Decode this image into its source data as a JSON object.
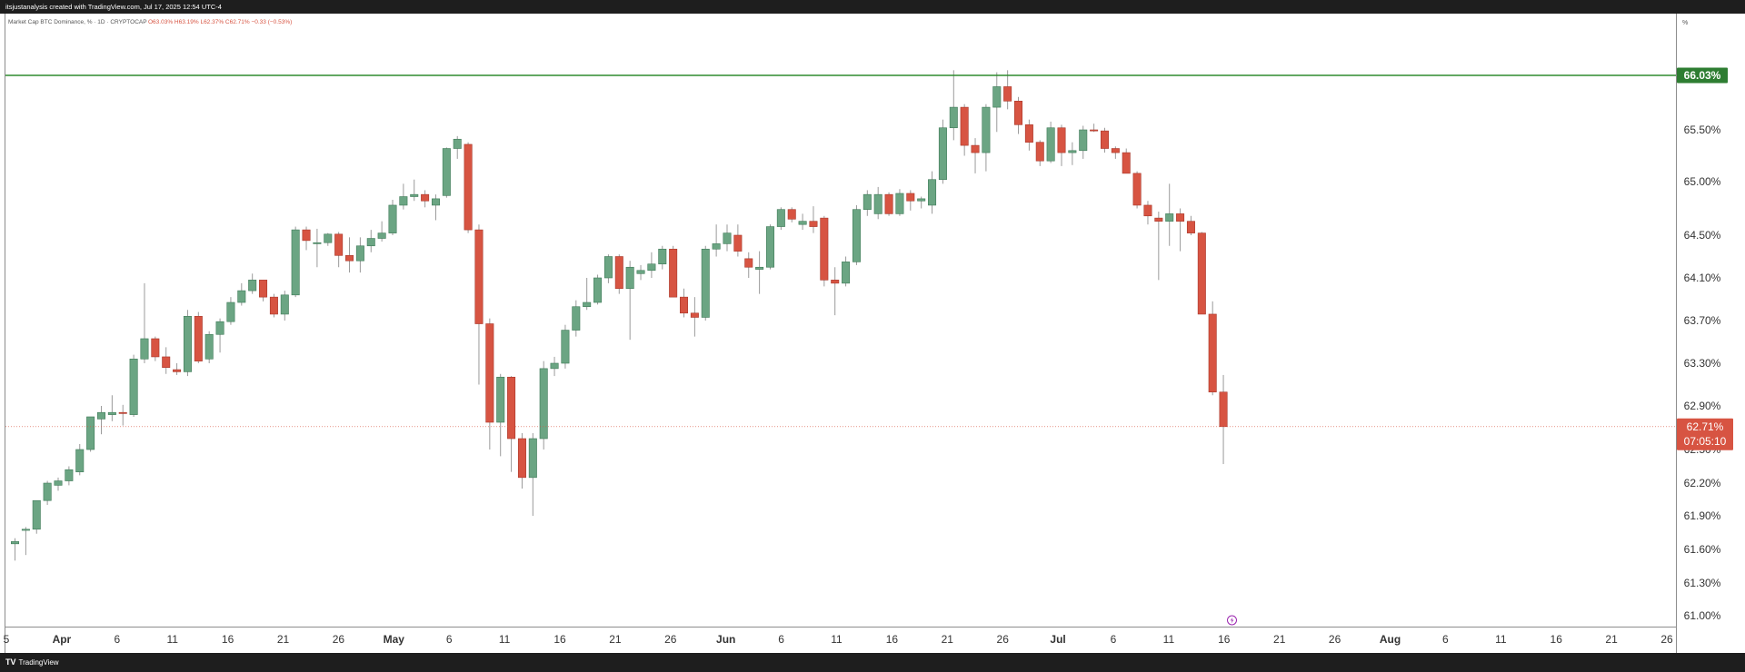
{
  "header": {
    "attribution": "itsjustanalysis created with TradingView.com, Jul 17, 2025 12:54 UTC-4",
    "symbol_line": "Market Cap BTC Dominance, % · 1D · CRYPTOCAP",
    "ohlc": "O63.03% H63.19% L62.37% C62.71% −0.33 (−0.53%)"
  },
  "footer": {
    "logo": "TV",
    "brand": "TradingView"
  },
  "price_axis": {
    "unit": "%"
  },
  "colors": {
    "up": "#6ba583",
    "down": "#d75442",
    "background": "#ffffff",
    "hline": "#2e8b2e",
    "hline_label_bg": "#2e7d32",
    "last_label_bg": "#d75442"
  },
  "chart_data": {
    "type": "candlestick",
    "title": "Market Cap BTC Dominance, % · 1D · CRYPTOCAP",
    "y_ticks": [
      "65.50%",
      "65.00%",
      "64.50%",
      "64.10%",
      "63.70%",
      "63.30%",
      "62.90%",
      "62.50%",
      "62.20%",
      "61.90%",
      "61.60%",
      "61.30%",
      "61.00%"
    ],
    "x_ticks": [
      "5",
      "Apr",
      "6",
      "11",
      "16",
      "21",
      "26",
      "May",
      "6",
      "11",
      "16",
      "21",
      "26",
      "Jun",
      "6",
      "11",
      "16",
      "21",
      "26",
      "Jul",
      "6",
      "11",
      "16",
      "21",
      "26",
      "Aug",
      "6",
      "11",
      "16",
      "21",
      "26"
    ],
    "horizontal_line": {
      "value": 66.03,
      "label": "66.03%"
    },
    "last_price": {
      "value": 62.71,
      "label": "62.71%",
      "countdown": "07:05:10"
    },
    "candles": [
      {
        "d": "2025-03-27",
        "o": 61.65,
        "h": 61.7,
        "l": 61.5,
        "c": 61.67
      },
      {
        "d": "2025-03-28",
        "o": 61.77,
        "h": 61.8,
        "l": 61.55,
        "c": 61.78
      },
      {
        "d": "2025-03-29",
        "o": 61.78,
        "h": 62.03,
        "l": 61.74,
        "c": 62.04
      },
      {
        "d": "2025-03-30",
        "o": 62.04,
        "h": 62.22,
        "l": 62.0,
        "c": 62.2
      },
      {
        "d": "2025-03-31",
        "o": 62.18,
        "h": 62.25,
        "l": 62.13,
        "c": 62.22
      },
      {
        "d": "2025-04-01",
        "o": 62.22,
        "h": 62.35,
        "l": 62.18,
        "c": 62.32
      },
      {
        "d": "2025-04-02",
        "o": 62.3,
        "h": 62.55,
        "l": 62.27,
        "c": 62.5
      },
      {
        "d": "2025-04-03",
        "o": 62.5,
        "h": 62.79,
        "l": 62.48,
        "c": 62.8
      },
      {
        "d": "2025-04-04",
        "o": 62.78,
        "h": 62.9,
        "l": 62.64,
        "c": 62.84
      },
      {
        "d": "2025-04-05",
        "o": 62.82,
        "h": 63.0,
        "l": 62.76,
        "c": 62.84
      },
      {
        "d": "2025-04-06",
        "o": 62.84,
        "h": 62.91,
        "l": 62.72,
        "c": 62.83
      },
      {
        "d": "2025-04-07",
        "o": 62.82,
        "h": 63.38,
        "l": 62.8,
        "c": 63.34
      },
      {
        "d": "2025-04-08",
        "o": 63.34,
        "h": 64.05,
        "l": 63.3,
        "c": 63.53
      },
      {
        "d": "2025-04-09",
        "o": 63.53,
        "h": 63.55,
        "l": 63.32,
        "c": 63.36
      },
      {
        "d": "2025-04-10",
        "o": 63.36,
        "h": 63.45,
        "l": 63.2,
        "c": 63.26
      },
      {
        "d": "2025-04-11",
        "o": 63.24,
        "h": 63.3,
        "l": 63.19,
        "c": 63.22
      },
      {
        "d": "2025-04-12",
        "o": 63.22,
        "h": 63.8,
        "l": 63.18,
        "c": 63.74
      },
      {
        "d": "2025-04-13",
        "o": 63.74,
        "h": 63.78,
        "l": 63.3,
        "c": 63.32
      },
      {
        "d": "2025-04-14",
        "o": 63.34,
        "h": 63.6,
        "l": 63.3,
        "c": 63.57
      },
      {
        "d": "2025-04-15",
        "o": 63.57,
        "h": 63.72,
        "l": 63.4,
        "c": 63.69
      },
      {
        "d": "2025-04-16",
        "o": 63.69,
        "h": 63.92,
        "l": 63.66,
        "c": 63.87
      },
      {
        "d": "2025-04-17",
        "o": 63.87,
        "h": 64.05,
        "l": 63.84,
        "c": 63.98
      },
      {
        "d": "2025-04-18",
        "o": 63.98,
        "h": 64.14,
        "l": 63.95,
        "c": 64.08
      },
      {
        "d": "2025-04-19",
        "o": 64.08,
        "h": 64.08,
        "l": 63.88,
        "c": 63.92
      },
      {
        "d": "2025-04-20",
        "o": 63.92,
        "h": 63.95,
        "l": 63.73,
        "c": 63.76
      },
      {
        "d": "2025-04-21",
        "o": 63.76,
        "h": 63.98,
        "l": 63.7,
        "c": 63.94
      },
      {
        "d": "2025-04-22",
        "o": 63.94,
        "h": 64.58,
        "l": 63.92,
        "c": 64.55
      },
      {
        "d": "2025-04-23",
        "o": 64.55,
        "h": 64.58,
        "l": 64.36,
        "c": 64.45
      },
      {
        "d": "2025-04-24",
        "o": 64.42,
        "h": 64.56,
        "l": 64.2,
        "c": 64.43
      },
      {
        "d": "2025-04-25",
        "o": 64.43,
        "h": 64.52,
        "l": 64.4,
        "c": 64.51
      },
      {
        "d": "2025-04-26",
        "o": 64.51,
        "h": 64.53,
        "l": 64.2,
        "c": 64.31
      },
      {
        "d": "2025-04-27",
        "o": 64.31,
        "h": 64.48,
        "l": 64.15,
        "c": 64.26
      },
      {
        "d": "2025-04-28",
        "o": 64.26,
        "h": 64.48,
        "l": 64.15,
        "c": 64.4
      },
      {
        "d": "2025-04-29",
        "o": 64.4,
        "h": 64.55,
        "l": 64.34,
        "c": 64.47
      },
      {
        "d": "2025-04-30",
        "o": 64.47,
        "h": 64.63,
        "l": 64.44,
        "c": 64.52
      },
      {
        "d": "2025-05-01",
        "o": 64.52,
        "h": 64.83,
        "l": 64.5,
        "c": 64.78
      },
      {
        "d": "2025-05-02",
        "o": 64.78,
        "h": 64.98,
        "l": 64.74,
        "c": 64.86
      },
      {
        "d": "2025-05-03",
        "o": 64.86,
        "h": 65.02,
        "l": 64.82,
        "c": 64.88
      },
      {
        "d": "2025-05-04",
        "o": 64.88,
        "h": 64.92,
        "l": 64.76,
        "c": 64.82
      },
      {
        "d": "2025-05-05",
        "o": 64.78,
        "h": 64.88,
        "l": 64.64,
        "c": 64.84
      },
      {
        "d": "2025-05-06",
        "o": 64.87,
        "h": 65.33,
        "l": 64.85,
        "c": 65.32
      },
      {
        "d": "2025-05-07",
        "o": 65.32,
        "h": 65.44,
        "l": 65.22,
        "c": 65.41
      },
      {
        "d": "2025-05-08",
        "o": 65.36,
        "h": 65.38,
        "l": 64.52,
        "c": 64.55
      },
      {
        "d": "2025-05-09",
        "o": 64.55,
        "h": 64.6,
        "l": 63.1,
        "c": 63.67
      },
      {
        "d": "2025-05-10",
        "o": 63.67,
        "h": 63.72,
        "l": 62.5,
        "c": 62.75
      },
      {
        "d": "2025-05-11",
        "o": 62.75,
        "h": 63.2,
        "l": 62.44,
        "c": 63.17
      },
      {
        "d": "2025-05-12",
        "o": 63.17,
        "h": 63.18,
        "l": 62.3,
        "c": 62.6
      },
      {
        "d": "2025-05-13",
        "o": 62.6,
        "h": 62.65,
        "l": 62.15,
        "c": 62.25
      },
      {
        "d": "2025-05-14",
        "o": 62.25,
        "h": 62.65,
        "l": 61.9,
        "c": 62.6
      },
      {
        "d": "2025-05-15",
        "o": 62.6,
        "h": 63.32,
        "l": 62.5,
        "c": 63.25
      },
      {
        "d": "2025-05-16",
        "o": 63.25,
        "h": 63.36,
        "l": 63.18,
        "c": 63.3
      },
      {
        "d": "2025-05-17",
        "o": 63.3,
        "h": 63.66,
        "l": 63.25,
        "c": 63.61
      },
      {
        "d": "2025-05-18",
        "o": 63.61,
        "h": 63.89,
        "l": 63.55,
        "c": 63.83
      },
      {
        "d": "2025-05-19",
        "o": 63.83,
        "h": 64.1,
        "l": 63.8,
        "c": 63.87
      },
      {
        "d": "2025-05-20",
        "o": 63.87,
        "h": 64.13,
        "l": 63.85,
        "c": 64.1
      },
      {
        "d": "2025-05-21",
        "o": 64.1,
        "h": 64.32,
        "l": 64.05,
        "c": 64.3
      },
      {
        "d": "2025-05-22",
        "o": 64.3,
        "h": 64.32,
        "l": 63.95,
        "c": 64.0
      },
      {
        "d": "2025-05-23",
        "o": 64.0,
        "h": 64.26,
        "l": 63.52,
        "c": 64.2
      },
      {
        "d": "2025-05-24",
        "o": 64.14,
        "h": 64.22,
        "l": 64.08,
        "c": 64.17
      },
      {
        "d": "2025-05-25",
        "o": 64.17,
        "h": 64.34,
        "l": 64.1,
        "c": 64.23
      },
      {
        "d": "2025-05-26",
        "o": 64.23,
        "h": 64.4,
        "l": 64.18,
        "c": 64.37
      },
      {
        "d": "2025-05-27",
        "o": 64.37,
        "h": 64.4,
        "l": 63.92,
        "c": 63.92
      },
      {
        "d": "2025-05-28",
        "o": 63.92,
        "h": 64.0,
        "l": 63.73,
        "c": 63.77
      },
      {
        "d": "2025-05-29",
        "o": 63.77,
        "h": 63.92,
        "l": 63.55,
        "c": 63.73
      },
      {
        "d": "2025-05-30",
        "o": 63.73,
        "h": 64.4,
        "l": 63.7,
        "c": 64.37
      },
      {
        "d": "2025-05-31",
        "o": 64.37,
        "h": 64.6,
        "l": 64.3,
        "c": 64.42
      },
      {
        "d": "2025-06-01",
        "o": 64.42,
        "h": 64.6,
        "l": 64.35,
        "c": 64.52
      },
      {
        "d": "2025-06-02",
        "o": 64.5,
        "h": 64.6,
        "l": 64.3,
        "c": 64.35
      },
      {
        "d": "2025-06-03",
        "o": 64.28,
        "h": 64.34,
        "l": 64.1,
        "c": 64.2
      },
      {
        "d": "2025-06-04",
        "o": 64.18,
        "h": 64.35,
        "l": 63.95,
        "c": 64.2
      },
      {
        "d": "2025-06-05",
        "o": 64.2,
        "h": 64.6,
        "l": 64.18,
        "c": 64.58
      },
      {
        "d": "2025-06-06",
        "o": 64.58,
        "h": 64.76,
        "l": 64.55,
        "c": 64.74
      },
      {
        "d": "2025-06-07",
        "o": 64.74,
        "h": 64.76,
        "l": 64.62,
        "c": 64.65
      },
      {
        "d": "2025-06-08",
        "o": 64.6,
        "h": 64.7,
        "l": 64.55,
        "c": 64.63
      },
      {
        "d": "2025-06-09",
        "o": 64.63,
        "h": 64.77,
        "l": 64.52,
        "c": 64.58
      },
      {
        "d": "2025-06-10",
        "o": 64.66,
        "h": 64.68,
        "l": 64.02,
        "c": 64.08
      },
      {
        "d": "2025-06-11",
        "o": 64.08,
        "h": 64.2,
        "l": 63.75,
        "c": 64.05
      },
      {
        "d": "2025-06-12",
        "o": 64.05,
        "h": 64.3,
        "l": 64.02,
        "c": 64.25
      },
      {
        "d": "2025-06-13",
        "o": 64.25,
        "h": 64.78,
        "l": 64.22,
        "c": 64.74
      },
      {
        "d": "2025-06-14",
        "o": 64.74,
        "h": 64.92,
        "l": 64.68,
        "c": 64.88
      },
      {
        "d": "2025-06-15",
        "o": 64.7,
        "h": 64.95,
        "l": 64.65,
        "c": 64.88
      },
      {
        "d": "2025-06-16",
        "o": 64.88,
        "h": 64.9,
        "l": 64.68,
        "c": 64.7
      },
      {
        "d": "2025-06-17",
        "o": 64.7,
        "h": 64.93,
        "l": 64.68,
        "c": 64.89
      },
      {
        "d": "2025-06-18",
        "o": 64.89,
        "h": 64.92,
        "l": 64.73,
        "c": 64.82
      },
      {
        "d": "2025-06-19",
        "o": 64.82,
        "h": 64.86,
        "l": 64.75,
        "c": 64.84
      },
      {
        "d": "2025-06-20",
        "o": 64.78,
        "h": 65.1,
        "l": 64.7,
        "c": 65.02
      },
      {
        "d": "2025-06-21",
        "o": 65.02,
        "h": 65.6,
        "l": 64.98,
        "c": 65.52
      },
      {
        "d": "2025-06-22",
        "o": 65.52,
        "h": 66.08,
        "l": 65.4,
        "c": 65.72
      },
      {
        "d": "2025-06-23",
        "o": 65.72,
        "h": 65.75,
        "l": 65.25,
        "c": 65.35
      },
      {
        "d": "2025-06-24",
        "o": 65.35,
        "h": 65.42,
        "l": 65.08,
        "c": 65.28
      },
      {
        "d": "2025-06-25",
        "o": 65.28,
        "h": 65.75,
        "l": 65.1,
        "c": 65.72
      },
      {
        "d": "2025-06-26",
        "o": 65.72,
        "h": 66.06,
        "l": 65.48,
        "c": 65.92
      },
      {
        "d": "2025-06-27",
        "o": 65.92,
        "h": 66.08,
        "l": 65.7,
        "c": 65.78
      },
      {
        "d": "2025-06-28",
        "o": 65.78,
        "h": 65.82,
        "l": 65.46,
        "c": 65.55
      },
      {
        "d": "2025-06-29",
        "o": 65.55,
        "h": 65.6,
        "l": 65.3,
        "c": 65.38
      },
      {
        "d": "2025-06-30",
        "o": 65.38,
        "h": 65.4,
        "l": 65.15,
        "c": 65.2
      },
      {
        "d": "2025-07-01",
        "o": 65.2,
        "h": 65.58,
        "l": 65.18,
        "c": 65.52
      },
      {
        "d": "2025-07-02",
        "o": 65.52,
        "h": 65.55,
        "l": 65.15,
        "c": 65.28
      },
      {
        "d": "2025-07-03",
        "o": 65.28,
        "h": 65.38,
        "l": 65.16,
        "c": 65.3
      },
      {
        "d": "2025-07-04",
        "o": 65.3,
        "h": 65.54,
        "l": 65.22,
        "c": 65.5
      },
      {
        "d": "2025-07-05",
        "o": 65.5,
        "h": 65.56,
        "l": 65.48,
        "c": 65.49
      },
      {
        "d": "2025-07-06",
        "o": 65.49,
        "h": 65.52,
        "l": 65.28,
        "c": 65.32
      },
      {
        "d": "2025-07-07",
        "o": 65.32,
        "h": 65.34,
        "l": 65.22,
        "c": 65.28
      },
      {
        "d": "2025-07-08",
        "o": 65.28,
        "h": 65.32,
        "l": 65.08,
        "c": 65.08
      },
      {
        "d": "2025-07-09",
        "o": 65.08,
        "h": 65.1,
        "l": 64.75,
        "c": 64.78
      },
      {
        "d": "2025-07-10",
        "o": 64.78,
        "h": 64.82,
        "l": 64.6,
        "c": 64.68
      },
      {
        "d": "2025-07-11",
        "o": 64.66,
        "h": 64.72,
        "l": 64.08,
        "c": 64.63
      },
      {
        "d": "2025-07-12",
        "o": 64.63,
        "h": 64.98,
        "l": 64.4,
        "c": 64.7
      },
      {
        "d": "2025-07-13",
        "o": 64.7,
        "h": 64.75,
        "l": 64.35,
        "c": 64.63
      },
      {
        "d": "2025-07-14",
        "o": 64.63,
        "h": 64.68,
        "l": 64.5,
        "c": 64.52
      },
      {
        "d": "2025-07-15",
        "o": 64.52,
        "h": 64.53,
        "l": 63.76,
        "c": 63.76
      },
      {
        "d": "2025-07-16",
        "o": 63.76,
        "h": 63.88,
        "l": 63.0,
        "c": 63.03
      },
      {
        "d": "2025-07-17",
        "o": 63.03,
        "h": 63.19,
        "l": 62.37,
        "c": 62.71
      }
    ]
  }
}
